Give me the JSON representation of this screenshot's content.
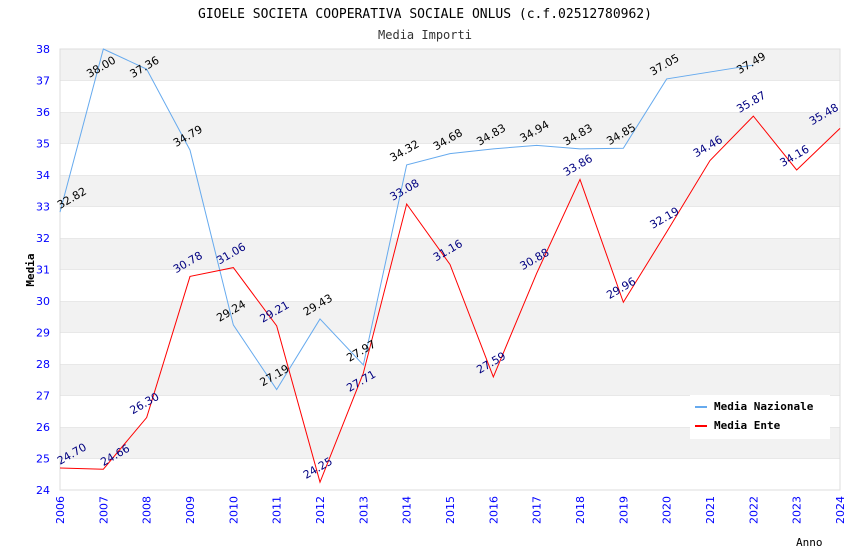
{
  "chart_data": {
    "type": "line",
    "title": "GIOELE SOCIETA COOPERATIVA SOCIALE ONLUS (c.f.02512780962)",
    "subtitle": "Media Importi",
    "xlabel": "Anno",
    "ylabel": "Media",
    "ylim": [
      24,
      38
    ],
    "yticks": [
      "24",
      "25",
      "26",
      "27",
      "28",
      "29",
      "30",
      "31",
      "32",
      "33",
      "34",
      "35",
      "36",
      "37",
      "38"
    ],
    "x": [
      2006,
      2007,
      2008,
      2009,
      2010,
      2011,
      2012,
      2013,
      2014,
      2015,
      2016,
      2017,
      2018,
      2019,
      2020,
      2021,
      2022,
      2023,
      2024
    ],
    "legend_position": "top-right",
    "series": [
      {
        "name": "Media Nazionale",
        "color": "#66aaee",
        "label_color": "#000000",
        "values": [
          32.82,
          38.0,
          37.36,
          34.79,
          29.24,
          27.19,
          29.43,
          27.97,
          34.32,
          34.68,
          34.83,
          34.94,
          34.83,
          34.85,
          37.05,
          null,
          37.49,
          null,
          null
        ],
        "labels": [
          "32.82",
          "38.00",
          "37.36",
          "34.79",
          "29.24",
          "27.19",
          "29.43",
          "27.97",
          "34.32",
          "34.68",
          "34.83",
          "34.94",
          "34.83",
          "34.85",
          "37.05",
          "",
          "37.49",
          "",
          ""
        ]
      },
      {
        "name": "Media Ente",
        "color": "#ff0000",
        "label_color": "#000080",
        "values": [
          24.7,
          24.66,
          26.3,
          30.78,
          31.06,
          29.21,
          24.25,
          27.71,
          33.08,
          31.16,
          27.59,
          30.88,
          33.86,
          29.96,
          32.19,
          34.46,
          35.87,
          34.16,
          35.48
        ],
        "labels": [
          "24.70",
          "24.66",
          "26.30",
          "30.78",
          "31.06",
          "29.21",
          "24.25",
          "27.71",
          "33.08",
          "31.16",
          "27.59",
          "30.88",
          "33.86",
          "29.96",
          "32.19",
          "34.46",
          "35.87",
          "34.16",
          "35.48"
        ]
      }
    ]
  }
}
